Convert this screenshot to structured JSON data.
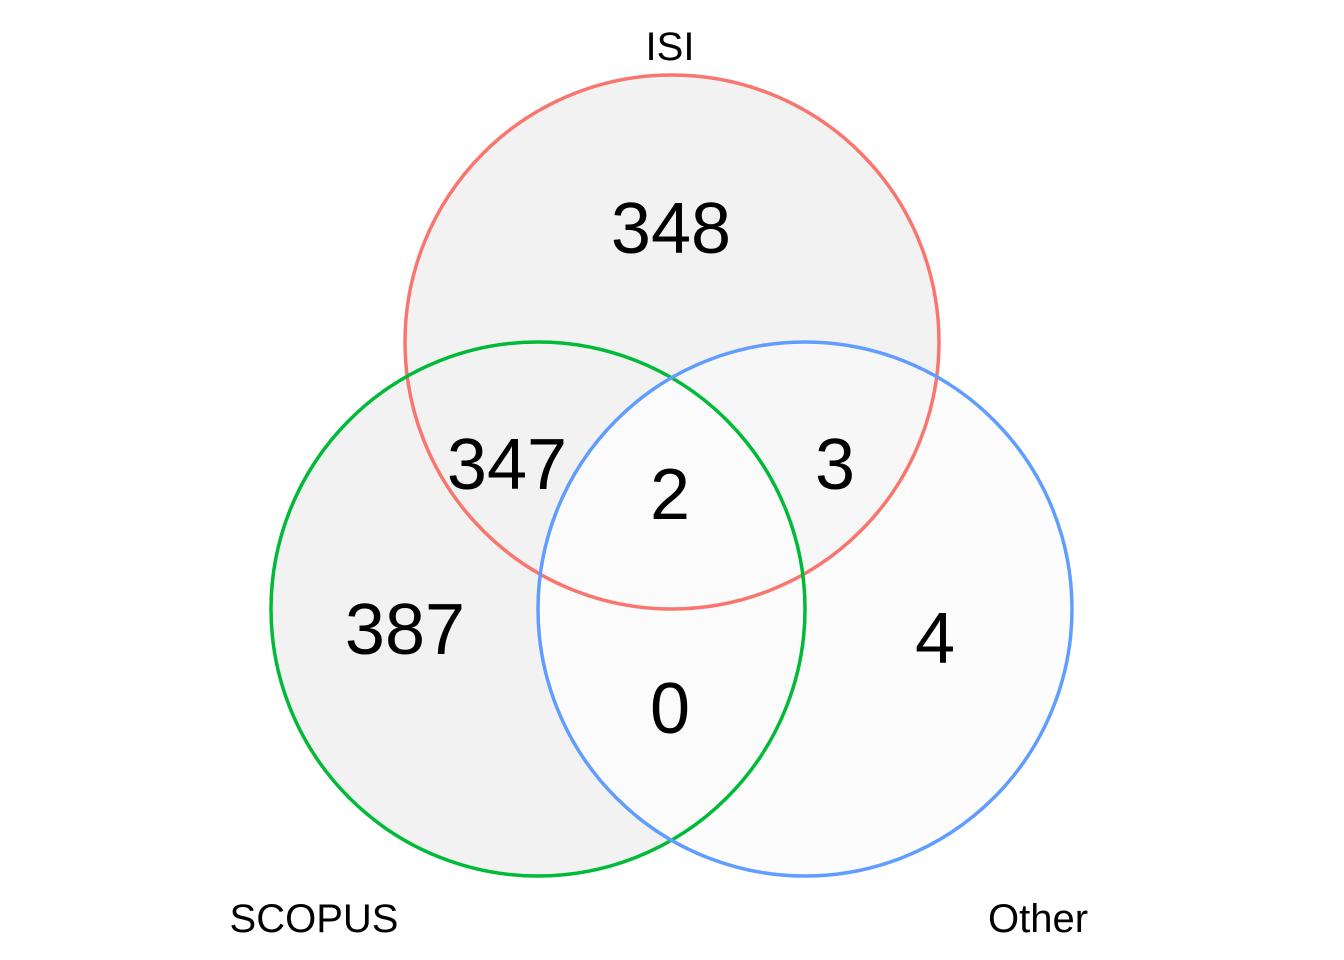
{
  "chart_data": {
    "type": "venn",
    "sets": [
      {
        "id": "isi",
        "label": "ISI",
        "color": "#F8766D"
      },
      {
        "id": "scopus",
        "label": "SCOPUS",
        "color": "#00BA38"
      },
      {
        "id": "other",
        "label": "Other",
        "color": "#619CFF"
      }
    ],
    "regions": {
      "isi_only": "348",
      "scopus_only": "387",
      "other_only": "4",
      "isi_scopus": "347",
      "isi_other": "3",
      "scopus_other": "0",
      "all_three": "2"
    },
    "region_colors": {
      "single": "#F2F2F2",
      "overlap_fill": "#F7F7F7",
      "other_fill": "#FCFCFC"
    }
  }
}
